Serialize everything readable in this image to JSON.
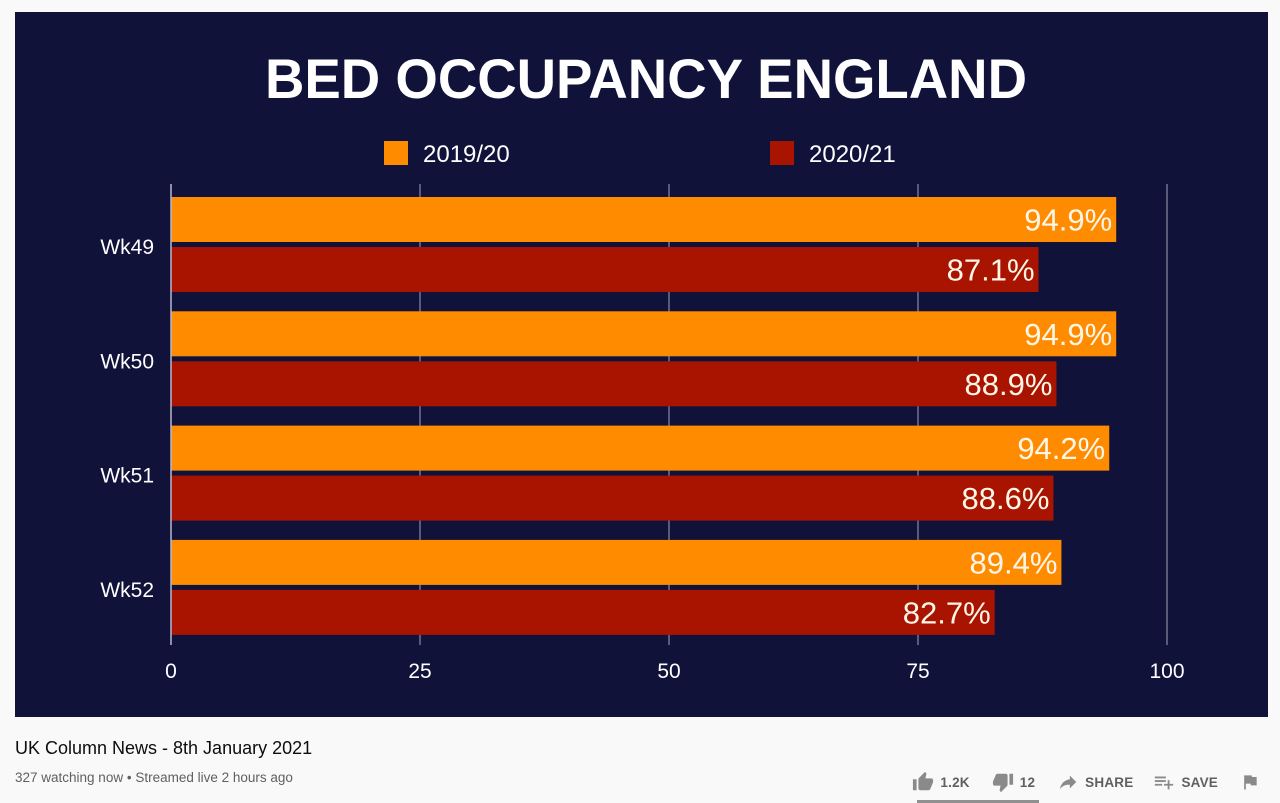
{
  "video": {
    "title": "UK Column News - 8th January 2021",
    "meta": {
      "watching": "327 watching now",
      "separator": "•",
      "streamed": "Streamed live 2 hours ago"
    },
    "actions": {
      "like_count": "1.2K",
      "dislike_count": "12",
      "share_label": "SHARE",
      "save_label": "SAVE"
    },
    "icons": {
      "like": "thumbs-up-icon",
      "dislike": "thumbs-down-icon",
      "share": "share-arrow-icon",
      "save": "playlist-add-icon",
      "report": "flag-icon"
    }
  },
  "colors": {
    "background": "#11123a",
    "series_2019_20": "#ff8c00",
    "series_2020_21": "#a81400",
    "text": "#ffffff"
  },
  "chart_data": {
    "type": "bar",
    "orientation": "horizontal",
    "title": "BED OCCUPANCY ENGLAND",
    "categories": [
      "Wk49",
      "Wk50",
      "Wk51",
      "Wk52"
    ],
    "series": [
      {
        "name": "2019/20",
        "color": "#ff8c00",
        "values": [
          94.9,
          94.9,
          94.2,
          89.4
        ],
        "labels": [
          "94.9%",
          "94.9%",
          "94.2%",
          "89.4%"
        ]
      },
      {
        "name": "2020/21",
        "color": "#a81400",
        "values": [
          87.1,
          88.9,
          88.6,
          82.7
        ],
        "labels": [
          "87.1%",
          "88.9%",
          "88.6%",
          "82.7%"
        ]
      }
    ],
    "xlim": [
      0,
      100
    ],
    "xticks": [
      0,
      25,
      50,
      75,
      100
    ],
    "xtick_labels": [
      "0",
      "25",
      "50",
      "75",
      "100"
    ],
    "xlabel": "",
    "ylabel": "",
    "grid": "vertical",
    "legend": "top-center"
  }
}
